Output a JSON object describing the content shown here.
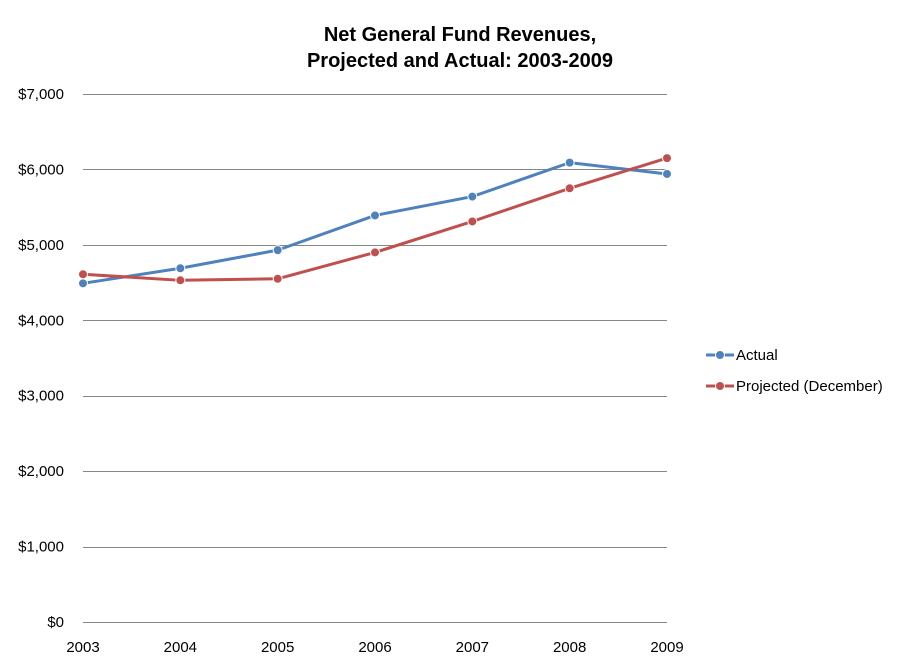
{
  "chart_data": {
    "type": "line",
    "title": [
      "Net General Fund Revenues,",
      "Projected and Actual: 2003-2009"
    ],
    "xlabel": "",
    "ylabel": "",
    "categories": [
      "2003",
      "2004",
      "2005",
      "2006",
      "2007",
      "2008",
      "2009"
    ],
    "ylim": [
      0,
      7000
    ],
    "yticks": [
      0,
      1000,
      2000,
      3000,
      4000,
      5000,
      6000,
      7000
    ],
    "ytick_labels": [
      "$0",
      "$1,000",
      "$2,000",
      "$3,000",
      "$4,000",
      "$5,000",
      "$6,000",
      "$7,000"
    ],
    "grid": true,
    "legend_position": "right",
    "series": [
      {
        "name": "Actual",
        "color": "#4F81BD",
        "values": [
          4490,
          4690,
          4930,
          5390,
          5640,
          6090,
          5940
        ]
      },
      {
        "name": "Projected (December)",
        "color": "#C0504D",
        "values": [
          4610,
          4530,
          4550,
          4900,
          5310,
          5750,
          6150
        ]
      }
    ]
  }
}
